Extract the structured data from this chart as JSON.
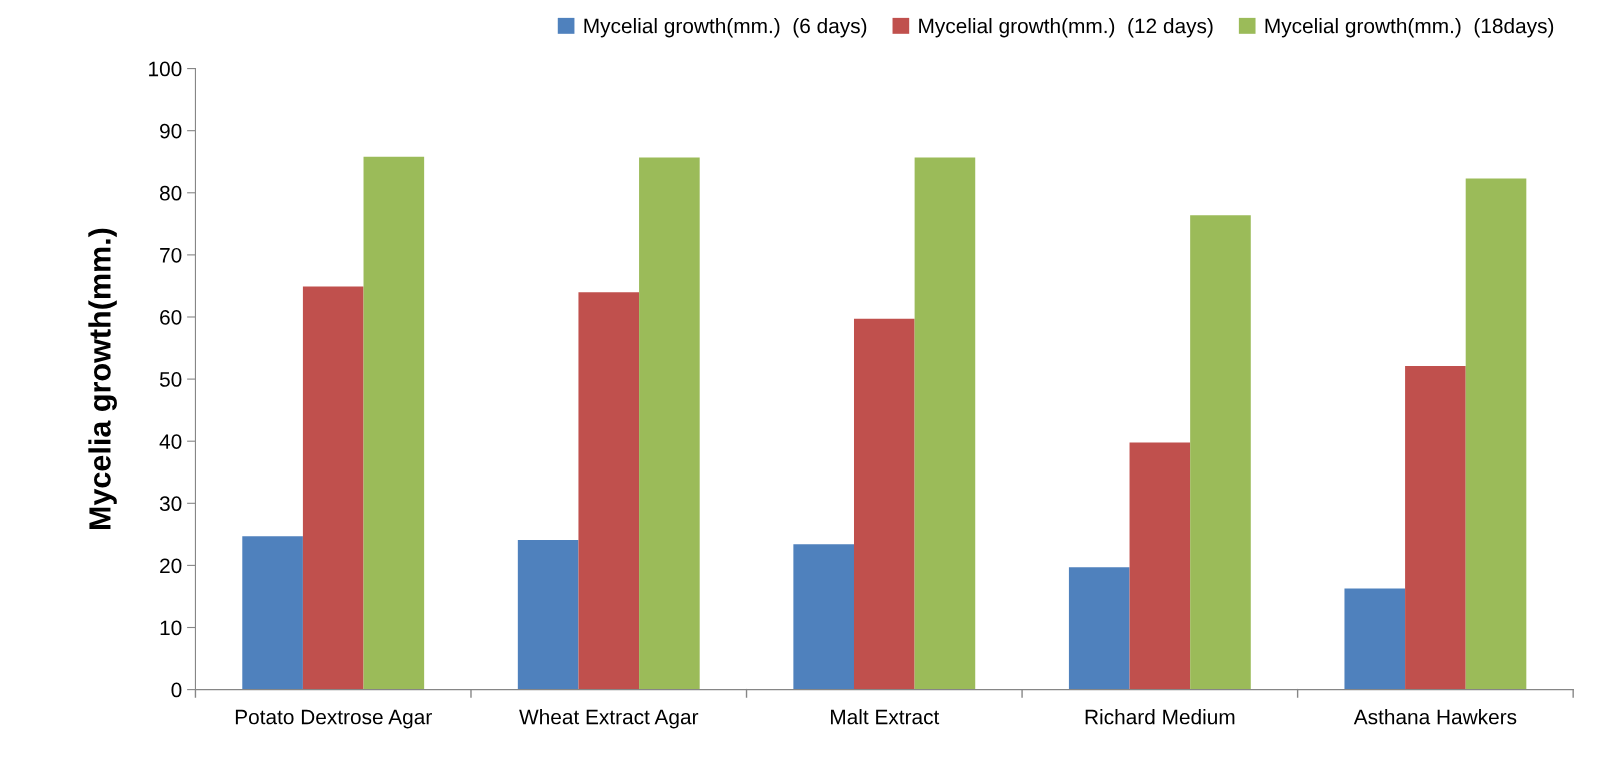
{
  "chart_data": {
    "type": "bar",
    "ylabel": "Mycelia growth(mm.)",
    "categories": [
      "Potato Dextrose Agar",
      "Wheat Extract Agar",
      "Malt Extract",
      "Richard Medium",
      "Asthana Hawkers"
    ],
    "series": [
      {
        "name": "Mycelial growth(mm.)  (6 days)",
        "color": "#4f81bd",
        "values": [
          24.7,
          24.1,
          23.4,
          19.7,
          16.3
        ]
      },
      {
        "name": "Mycelial growth(mm.)  (12 days)",
        "color": "#c0504d",
        "values": [
          64.9,
          64.0,
          59.7,
          39.8,
          52.1
        ]
      },
      {
        "name": "Mycelial growth(mm.)  (18days)",
        "color": "#9bbb59",
        "values": [
          85.8,
          85.7,
          85.7,
          76.4,
          82.3
        ]
      }
    ],
    "ylim": [
      0,
      100
    ],
    "yticks": [
      0,
      10,
      20,
      30,
      40,
      50,
      60,
      70,
      80,
      90,
      100
    ],
    "grid": false,
    "legend": "top right"
  }
}
